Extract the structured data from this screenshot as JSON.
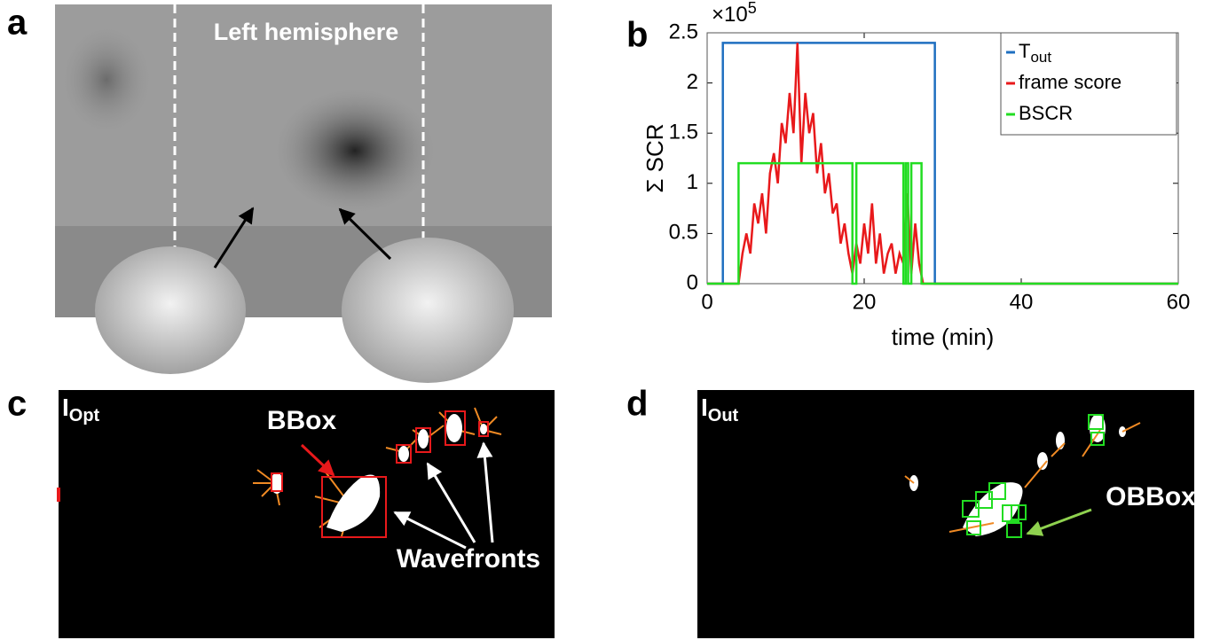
{
  "panels": [
    {
      "letter": "a",
      "title": "Left hemisphere"
    },
    {
      "letter": "b"
    },
    {
      "letter": "c",
      "image_label": "I",
      "image_label_sub": "Opt",
      "annotations": [
        "BBox",
        "Wavefronts"
      ]
    },
    {
      "letter": "d",
      "image_label": "I",
      "image_label_sub": "Out",
      "annotations": [
        "OBBox"
      ]
    }
  ],
  "chart_data": {
    "type": "line",
    "y_label": "Σ SCR",
    "x_label": "time (min)",
    "y_multiplier": "×10",
    "y_multiplier_exponent": "5",
    "xlim": [
      0,
      60
    ],
    "xticks": [
      0,
      20,
      40,
      60
    ],
    "ylim": [
      0,
      2.5
    ],
    "yticks": [
      0,
      0.5,
      1,
      1.5,
      2,
      2.5
    ],
    "legend": "upper right",
    "series": [
      {
        "name": "T",
        "name_subscript": "out",
        "color": "#1f6fc0",
        "x": [
          0,
          2,
          2,
          29,
          29,
          60
        ],
        "values": [
          0,
          0,
          2.4,
          2.4,
          0,
          0
        ]
      },
      {
        "name": "frame score",
        "color": "#e8191b",
        "x": [
          0,
          4,
          4.5,
          5,
          5.5,
          6,
          6.5,
          7,
          7.5,
          8,
          8.5,
          9,
          9.5,
          10,
          10.5,
          11,
          11.5,
          12,
          12.5,
          13,
          13.5,
          14,
          14.5,
          15,
          15.5,
          16,
          16.5,
          17,
          17.5,
          18,
          18.5,
          19,
          19.5,
          20,
          20.5,
          21,
          21.5,
          22,
          22.5,
          23,
          23.5,
          24,
          24.5,
          25,
          25.5,
          26,
          26.5,
          27,
          27.5,
          60
        ],
        "values": [
          0,
          0,
          0.3,
          0.5,
          0.3,
          0.8,
          0.6,
          0.9,
          0.5,
          1.1,
          1.3,
          1.0,
          1.6,
          1.4,
          1.9,
          1.5,
          2.4,
          1.2,
          1.9,
          1.5,
          1.7,
          1.1,
          1.4,
          0.9,
          1.1,
          0.7,
          0.8,
          0.4,
          0.6,
          0.3,
          0.1,
          0.4,
          0.2,
          0.6,
          0.3,
          0.8,
          0.2,
          0.5,
          0.1,
          0.3,
          0.4,
          0.1,
          0.3,
          0.2,
          0.9,
          0.1,
          0.6,
          0.2,
          0,
          0
        ]
      },
      {
        "name": "BSCR",
        "color": "#22dd22",
        "x": [
          0,
          4,
          4,
          18.5,
          18.5,
          19,
          19,
          25,
          25,
          25.3,
          25.3,
          25.6,
          25.6,
          26,
          26,
          27.3,
          27.3,
          60
        ],
        "values": [
          0,
          0,
          1.2,
          1.2,
          0,
          0,
          1.2,
          1.2,
          0,
          0,
          1.2,
          1.2,
          0,
          0,
          1.2,
          1.2,
          0,
          0
        ]
      }
    ]
  }
}
